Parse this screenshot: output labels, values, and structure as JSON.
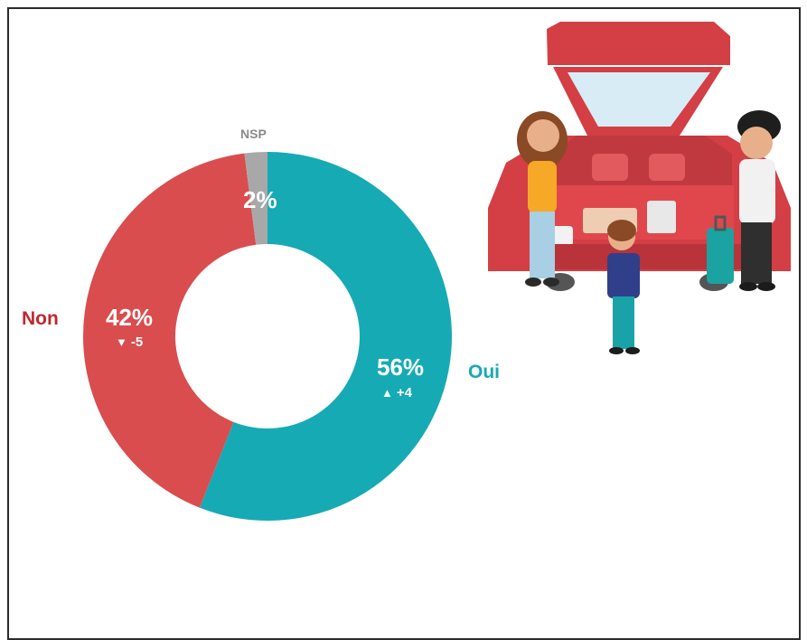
{
  "chart_data": {
    "type": "pie",
    "variant": "donut",
    "slices": [
      {
        "category": "Oui",
        "value": 56,
        "label": "56%",
        "change": "+4",
        "change_direction": "up",
        "color": "#16aab4"
      },
      {
        "category": "Non",
        "value": 42,
        "label": "42%",
        "change": "-5",
        "change_direction": "down",
        "color": "#d94d4f"
      },
      {
        "category": "NSP",
        "value": 2,
        "label": "2%",
        "change": "",
        "change_direction": "",
        "color": "#a8a8a8"
      }
    ]
  },
  "colors": {
    "oui": "#16aab4",
    "non": "#d94d4f",
    "nsp": "#a8a8a8",
    "non_label": "#c0282d",
    "oui_label": "#16aab4"
  },
  "illustration": {
    "icon": "family-car-trunk-illustration"
  }
}
